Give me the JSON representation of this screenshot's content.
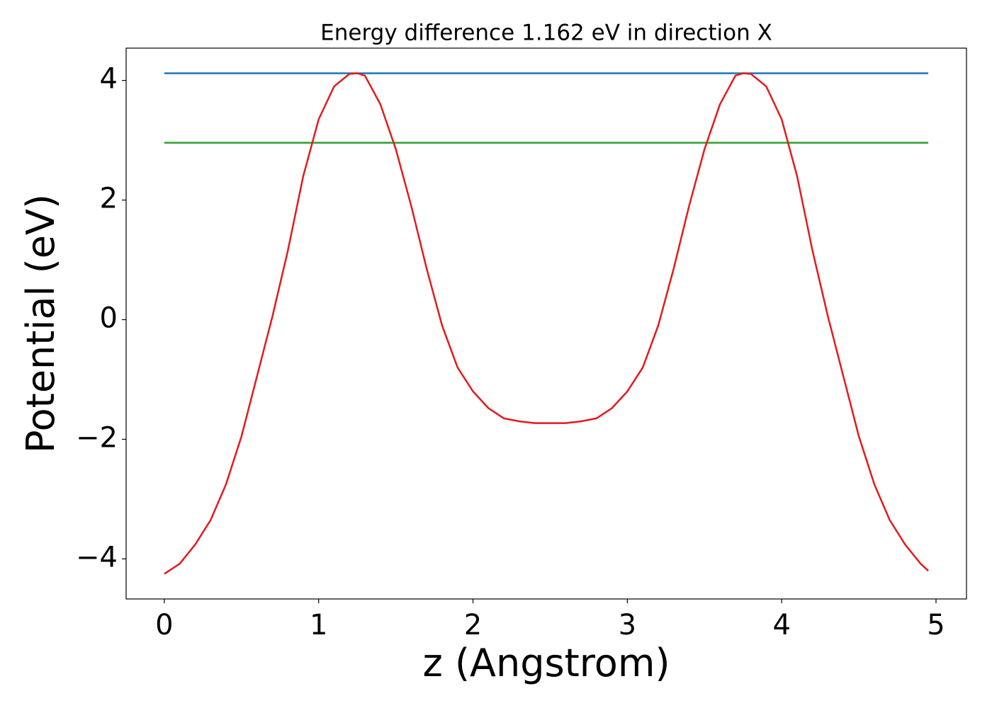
{
  "chart_data": {
    "type": "line",
    "title": "Energy difference 1.162 eV in direction X",
    "x_label": "z (Angstrom)",
    "y_label": "Potential (eV)",
    "xlim": [
      -0.2475,
      5.1975
    ],
    "ylim": [
      -4.67,
      4.54
    ],
    "xticks": [
      0,
      1,
      2,
      3,
      4,
      5
    ],
    "yticks": [
      {
        "value": -4,
        "label": "−4"
      },
      {
        "value": -2,
        "label": "−2"
      },
      0,
      2,
      4
    ],
    "grid": false,
    "series": [
      {
        "color": "#1f77b4",
        "x": [
          0,
          4.95
        ],
        "values": [
          4.12,
          4.12
        ]
      },
      {
        "color": "#2ca02c",
        "x": [
          0,
          4.95
        ],
        "values": [
          2.958,
          2.958
        ]
      },
      {
        "color": "#e41a1c",
        "x": [
          0,
          0.1,
          0.2,
          0.3,
          0.4,
          0.5,
          0.6,
          0.7,
          0.8,
          0.9,
          1.0,
          1.1,
          1.2,
          1.25,
          1.3,
          1.4,
          1.5,
          1.6,
          1.7,
          1.8,
          1.9,
          2.0,
          2.1,
          2.2,
          2.3,
          2.4,
          2.5,
          2.6,
          2.7,
          2.8,
          2.9,
          3.0,
          3.1,
          3.2,
          3.3,
          3.4,
          3.5,
          3.6,
          3.7,
          3.75,
          3.8,
          3.9,
          4.0,
          4.1,
          4.2,
          4.3,
          4.4,
          4.5,
          4.6,
          4.7,
          4.8,
          4.9,
          4.95
        ],
        "values": [
          -4.25,
          -4.08,
          -3.76,
          -3.35,
          -2.75,
          -1.95,
          -0.95,
          0.05,
          1.15,
          2.4,
          3.35,
          3.9,
          4.11,
          4.12,
          4.08,
          3.6,
          2.85,
          1.9,
          0.85,
          -0.1,
          -0.8,
          -1.2,
          -1.48,
          -1.65,
          -1.7,
          -1.73,
          -1.73,
          -1.73,
          -1.7,
          -1.65,
          -1.48,
          -1.2,
          -0.8,
          -0.1,
          0.85,
          1.9,
          2.85,
          3.6,
          4.08,
          4.12,
          4.11,
          3.9,
          3.35,
          2.4,
          1.15,
          0.05,
          -0.95,
          -1.95,
          -2.75,
          -3.35,
          -3.76,
          -4.08,
          -4.2
        ]
      }
    ]
  }
}
